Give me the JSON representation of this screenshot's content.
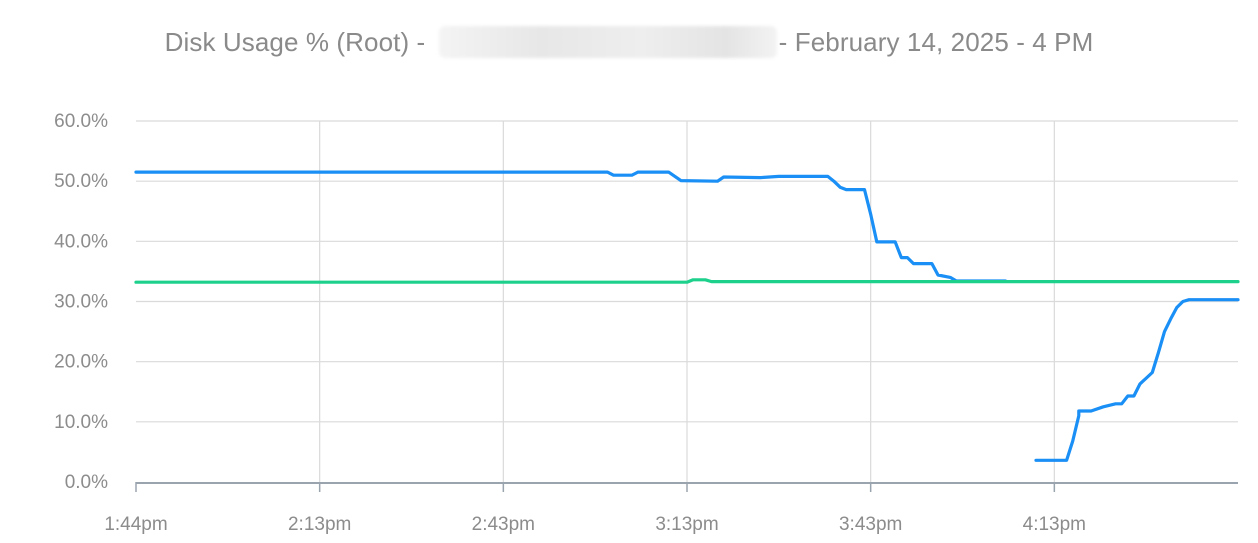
{
  "title": {
    "prefix": "Disk Usage % (Root) - ",
    "suffix": "- February 14, 2025 - 4 PM"
  },
  "colors": {
    "series_blue": "#1a8ff5",
    "series_green": "#1dd18c",
    "grid": "#dadada",
    "axis": "#9aa4ae",
    "text": "#8a8a8a"
  },
  "chart_data": {
    "type": "line",
    "grid": true,
    "x_tick_labels": [
      "1:44pm",
      "2:13pm",
      "2:43pm",
      "3:13pm",
      "3:43pm",
      "4:13pm"
    ],
    "y_tick_labels": [
      "0.0%",
      "10.0%",
      "20.0%",
      "30.0%",
      "40.0%",
      "50.0%",
      "60.0%"
    ],
    "xlim": [
      "13:44",
      "16:44"
    ],
    "ylim": [
      0,
      60
    ],
    "series": [
      {
        "color": "#1a8ff5",
        "segments": [
          [
            [
              "13:44",
              51.5
            ],
            [
              "15:01",
              51.5
            ],
            [
              "15:02",
              51.0
            ],
            [
              "15:05",
              51.0
            ],
            [
              "15:06",
              51.5
            ],
            [
              "15:11",
              51.5
            ],
            [
              "15:13",
              50.1
            ],
            [
              "15:19",
              50.0
            ],
            [
              "15:20",
              50.7
            ],
            [
              "15:26",
              50.6
            ],
            [
              "15:29",
              50.8
            ],
            [
              "15:37",
              50.8
            ],
            [
              "15:38",
              50.0
            ],
            [
              "15:39",
              49.0
            ],
            [
              "15:40",
              48.6
            ],
            [
              "15:43",
              48.6
            ],
            [
              "15:44",
              44.5
            ],
            [
              "15:45",
              39.9
            ],
            [
              "15:48",
              39.9
            ],
            [
              "15:49",
              37.3
            ],
            [
              "15:50",
              37.3
            ],
            [
              "15:51",
              36.3
            ],
            [
              "15:54",
              36.3
            ],
            [
              "15:55",
              34.4
            ],
            [
              "15:57",
              34.0
            ],
            [
              "15:58",
              33.4
            ],
            [
              "16:06",
              33.4
            ]
          ],
          [
            [
              "16:11",
              3.6
            ],
            [
              "16:16",
              3.6
            ],
            [
              "16:17",
              6.8
            ],
            [
              "16:18",
              11.0
            ],
            [
              "16:18",
              11.8
            ],
            [
              "16:20",
              11.8
            ],
            [
              "16:22",
              12.5
            ],
            [
              "16:24",
              13.0
            ],
            [
              "16:25",
              13.0
            ],
            [
              "16:26",
              14.3
            ],
            [
              "16:27",
              14.3
            ],
            [
              "16:28",
              16.3
            ],
            [
              "16:30",
              18.2
            ],
            [
              "16:31",
              21.5
            ],
            [
              "16:32",
              25.0
            ],
            [
              "16:33",
              27.1
            ],
            [
              "16:34",
              29.0
            ],
            [
              "16:35",
              30.0
            ],
            [
              "16:36",
              30.3
            ],
            [
              "16:44",
              30.3
            ]
          ]
        ]
      },
      {
        "color": "#1dd18c",
        "segments": [
          [
            [
              "13:44",
              33.2
            ],
            [
              "15:14",
              33.2
            ],
            [
              "15:15",
              33.6
            ],
            [
              "15:17",
              33.6
            ],
            [
              "15:18",
              33.3
            ],
            [
              "16:44",
              33.3
            ]
          ]
        ]
      }
    ]
  }
}
